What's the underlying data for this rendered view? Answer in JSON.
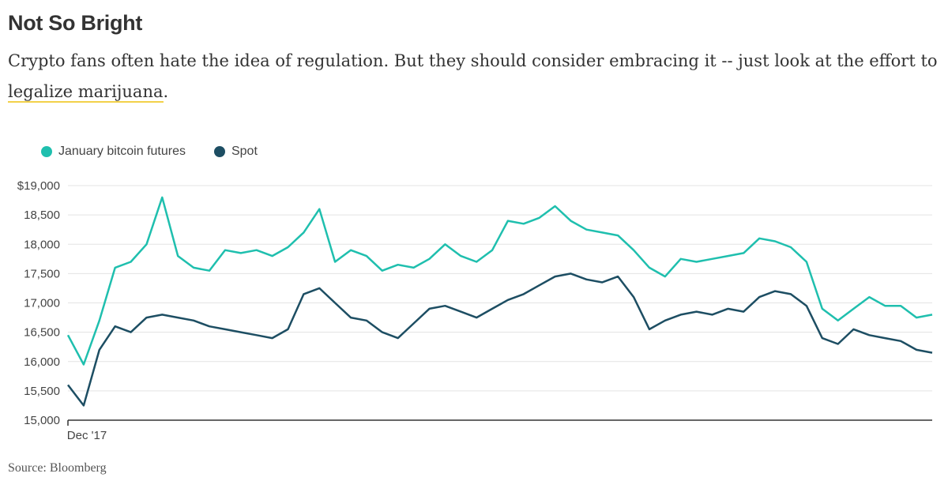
{
  "header": {
    "title": "Not So Bright",
    "subtitle_before": "Crypto fans often hate the idea of regulation. But they should consider embracing it -- just look at the effort to ",
    "subtitle_link": "legalize marijuana",
    "subtitle_after": "."
  },
  "source": "Source: Bloomberg",
  "colors": {
    "futures": "#1fbfae",
    "spot": "#1d4e63",
    "underline": "#f2d14a"
  },
  "chart_data": {
    "type": "line",
    "title": "",
    "xlabel": "",
    "ylabel": "",
    "x_tick_labels": [
      "Dec '17"
    ],
    "y_ticks": [
      15000,
      15500,
      16000,
      16500,
      17000,
      17500,
      18000,
      18500,
      19000
    ],
    "y_tick_labels": [
      "15,000",
      "15,500",
      "16,000",
      "16,500",
      "17,000",
      "17,500",
      "18,000",
      "18,500",
      "$19,000"
    ],
    "ylim": [
      15000,
      19000
    ],
    "grid": "horizontal",
    "legend_position": "top-left",
    "series": [
      {
        "name": "January bitcoin futures",
        "color": "#1fbfae",
        "values": [
          16450,
          15950,
          16700,
          17600,
          17700,
          18000,
          18800,
          17800,
          17600,
          17550,
          17900,
          17850,
          17900,
          17800,
          17950,
          18200,
          18600,
          17700,
          17900,
          17800,
          17550,
          17650,
          17600,
          17750,
          18000,
          17800,
          17700,
          17900,
          18400,
          18350,
          18450,
          18650,
          18400,
          18250,
          18200,
          18150,
          17900,
          17600,
          17450,
          17750,
          17700,
          17750,
          17800,
          17850,
          18100,
          18050,
          17950,
          17700,
          16900,
          16700,
          16900,
          17100,
          16950,
          16950,
          16750,
          16800
        ]
      },
      {
        "name": "Spot",
        "color": "#1d4e63",
        "values": [
          15600,
          15250,
          16200,
          16600,
          16500,
          16750,
          16800,
          16750,
          16700,
          16600,
          16550,
          16500,
          16450,
          16400,
          16550,
          17150,
          17250,
          17000,
          16750,
          16700,
          16500,
          16400,
          16650,
          16900,
          16950,
          16850,
          16750,
          16900,
          17050,
          17150,
          17300,
          17450,
          17500,
          17400,
          17350,
          17450,
          17100,
          16550,
          16700,
          16800,
          16850,
          16800,
          16900,
          16850,
          17100,
          17200,
          17150,
          16950,
          16400,
          16300,
          16550,
          16450,
          16400,
          16350,
          16200,
          16150
        ]
      }
    ]
  }
}
